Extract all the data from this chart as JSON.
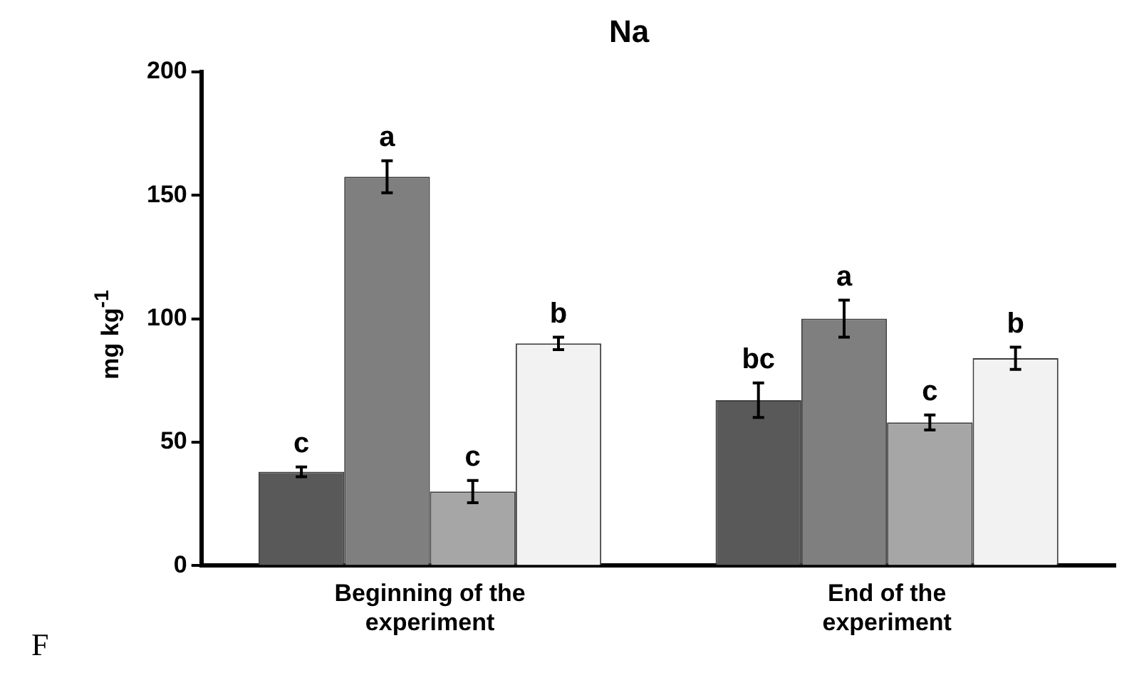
{
  "chart_data": {
    "type": "bar",
    "title": "Na",
    "ylabel": "mg kg$^{-1}$",
    "categories": [
      "Beginning of the experiment",
      "End of the experiment"
    ],
    "series": [
      {
        "color": "#595959",
        "values": [
          38,
          67
        ],
        "errors": [
          2,
          7
        ],
        "value_labels": [
          "c",
          "bc"
        ]
      },
      {
        "color": "#7f7f7f",
        "values": [
          157.5,
          100
        ],
        "errors": [
          6.5,
          7.5
        ],
        "value_labels": [
          "a",
          "a"
        ]
      },
      {
        "color": "#a6a6a6",
        "values": [
          30,
          58
        ],
        "errors": [
          4.5,
          3
        ],
        "value_labels": [
          "c",
          "c"
        ]
      },
      {
        "color": "#f2f2f2",
        "values": [
          90,
          84
        ],
        "errors": [
          2.5,
          4.5
        ],
        "value_labels": [
          "b",
          "b"
        ]
      }
    ],
    "ylim": [
      0,
      200
    ],
    "yticks": [
      0,
      50,
      100,
      150,
      200
    ],
    "grid": false,
    "legend": false,
    "annotations": [
      "F"
    ]
  }
}
